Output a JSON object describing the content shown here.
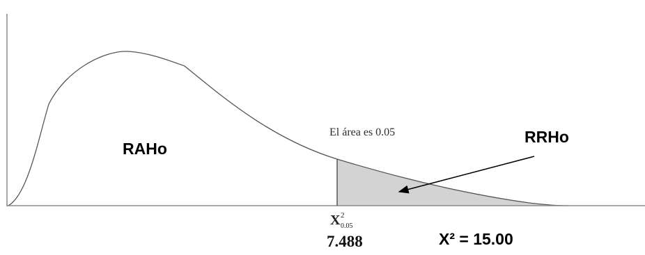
{
  "labels": {
    "acceptance_region": "RAHo",
    "rejection_region": "RRHo",
    "area_note": "El área es 0.05",
    "critical_symbol": "X",
    "critical_superscript": "2",
    "critical_subscript": "0.05",
    "critical_value": "7.488",
    "test_statistic": "X² = 15.00"
  },
  "colors": {
    "curve": "#555555",
    "axis": "#8a8a8a",
    "shaded_area": "#d3d3d3",
    "boundary_line": "#555555",
    "arrow": "#000000"
  }
}
